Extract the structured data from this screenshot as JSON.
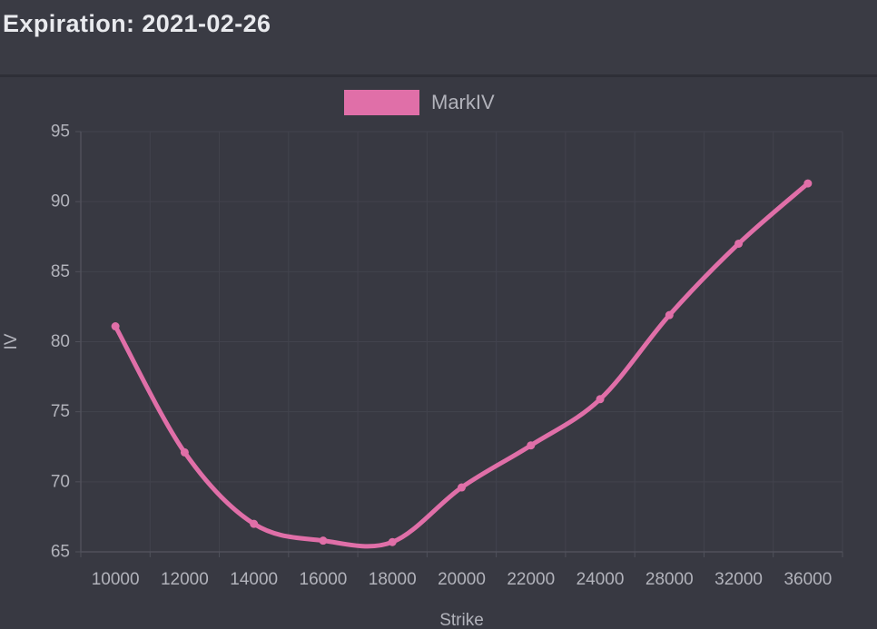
{
  "header": {
    "title": "Expiration: 2021-02-26"
  },
  "legend": {
    "items": [
      {
        "label": "MarkIV",
        "color": "#e06fa8"
      }
    ]
  },
  "chart_data": {
    "type": "line",
    "title": "Expiration: 2021-02-26",
    "xlabel": "Strike",
    "ylabel": "IV",
    "categories": [
      "10000",
      "12000",
      "14000",
      "16000",
      "18000",
      "20000",
      "22000",
      "24000",
      "28000",
      "32000",
      "36000"
    ],
    "series": [
      {
        "name": "MarkIV",
        "color": "#e06fa8",
        "values": [
          81.1,
          72.1,
          67.0,
          65.8,
          65.7,
          69.6,
          72.6,
          75.9,
          81.9,
          87.0,
          91.3
        ]
      }
    ],
    "ylim": [
      65,
      95
    ],
    "ytick_step": 5,
    "grid": true,
    "smooth": true,
    "legend_position": "top"
  },
  "colors": {
    "page_bg": "#383942",
    "header_bg": "#3a3b44",
    "divider": "#2e2f37",
    "title_text": "#e9eaee",
    "tick_text": "#b2b3bb",
    "grid": "#42434d",
    "axis": "#50515b",
    "accent": "#e06fa8"
  }
}
